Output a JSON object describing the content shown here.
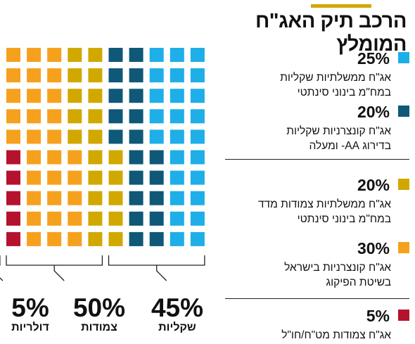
{
  "title": "הרכב תיק האג\"ח המומלץ",
  "colors": {
    "accent_bar": "#d2a800",
    "light_blue": "#1eaee8",
    "dark_blue": "#0f5878",
    "gold": "#d1a800",
    "orange": "#f5a11e",
    "red": "#b5122e"
  },
  "legend": [
    {
      "pct": "25%",
      "line1": "אג\"ח ממשלתיות שקליות",
      "line2": "במח\"מ בינוני סינתטי",
      "color": "#1eaee8"
    },
    {
      "pct": "20%",
      "line1": "אג\"ח קונצרניות שקליות",
      "line2": "בדירוג AA- ומעלה",
      "color": "#0f5878"
    },
    {
      "pct": "20%",
      "line1": "אג\"ח ממשלתיות צמודות מדד",
      "line2": "במח\"מ בינוני סינתטי",
      "color": "#d1a800"
    },
    {
      "pct": "30%",
      "line1": "אג\"ח קונצרניות בישראל",
      "line2": "בשיטת הפיקוג",
      "color": "#f5a11e"
    },
    {
      "pct": "5%",
      "line1": "אג\"ח צמודות מט\"ח/חו\"ל",
      "line2": "",
      "color": "#b5122e"
    }
  ],
  "groups": [
    {
      "pct": "45%",
      "label": "שקליות"
    },
    {
      "pct": "50%",
      "label": "צמודות"
    },
    {
      "pct": "5%",
      "label": "דולריות"
    }
  ],
  "chart_data": {
    "type": "waffle",
    "unit": "each square = 1%",
    "title": "הרכב תיק האג\"ח המומלץ",
    "series": [
      {
        "name": "אג\"ח ממשלתיות שקליות במח\"מ בינוני סינתטי",
        "value": 25,
        "color": "#1eaee8"
      },
      {
        "name": "אג\"ח קונצרניות שקליות בדירוג AA- ומעלה",
        "value": 20,
        "color": "#0f5878"
      },
      {
        "name": "אג\"ח ממשלתיות צמודות מדד במח\"מ בינוני סינתטי",
        "value": 20,
        "color": "#d1a800"
      },
      {
        "name": "אג\"ח קונצרניות בישראל בשיטת הפיקוג",
        "value": 30,
        "color": "#f5a11e"
      },
      {
        "name": "אג\"ח צמודות מט\"ח/חו\"ל",
        "value": 5,
        "color": "#b5122e"
      }
    ],
    "groups": [
      {
        "name": "שקליות",
        "value": 45
      },
      {
        "name": "צמודות",
        "value": 50
      },
      {
        "name": "דולריות",
        "value": 5
      }
    ]
  }
}
